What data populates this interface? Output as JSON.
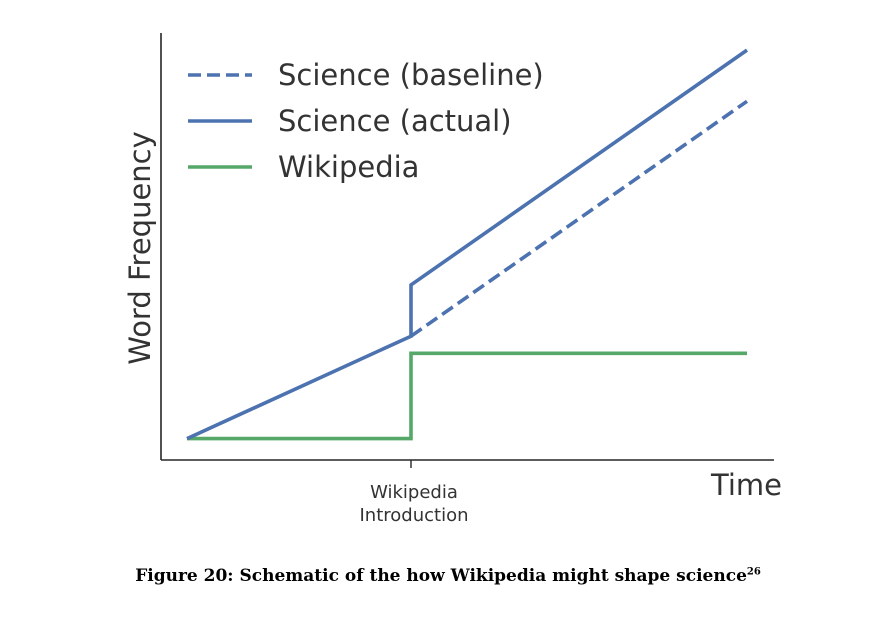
{
  "figure": {
    "caption": "Figure 20: Schematic of the how Wikipedia might shape science",
    "caption_ref": "26"
  },
  "chart_data": {
    "type": "line",
    "title": "",
    "xlabel": "Time",
    "ylabel": "Word Frequency",
    "x_ticks": [
      {
        "x": 0.4,
        "label_lines": [
          "Wikipedia",
          "Introduction"
        ]
      }
    ],
    "xlim": [
      0,
      1.1
    ],
    "ylim": [
      0,
      1
    ],
    "grid": false,
    "legend_position": "top-left",
    "series": [
      {
        "name": "Science (baseline)",
        "style": "dashed",
        "color": "#4c72b0",
        "x": [
          0.4,
          1.0
        ],
        "y": [
          0.29,
          0.84
        ]
      },
      {
        "name": "Science (actual)",
        "style": "solid",
        "color": "#4c72b0",
        "x": [
          0.0,
          0.4,
          0.4,
          1.0
        ],
        "y": [
          0.05,
          0.29,
          0.41,
          0.96
        ]
      },
      {
        "name": "Wikipedia",
        "style": "solid",
        "color": "#55a868",
        "x": [
          0.0,
          0.4,
          0.4,
          1.0
        ],
        "y": [
          0.05,
          0.05,
          0.25,
          0.25
        ]
      }
    ]
  }
}
